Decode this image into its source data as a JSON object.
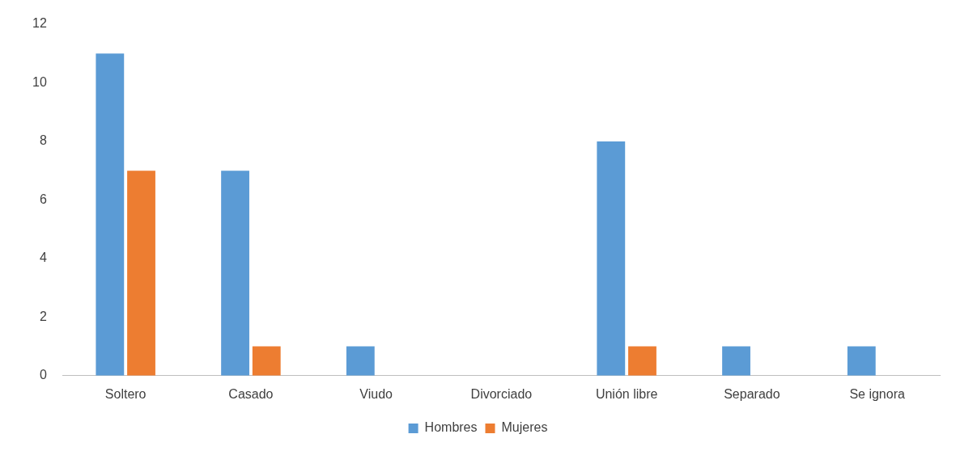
{
  "chart_data": {
    "type": "bar",
    "categories": [
      "Soltero",
      "Casado",
      "Viudo",
      "Divorciado",
      "Unión libre",
      "Separado",
      "Se ignora"
    ],
    "series": [
      {
        "name": "Hombres",
        "color": "#5b9bd5",
        "values": [
          11,
          7,
          1,
          0,
          8,
          1,
          1
        ]
      },
      {
        "name": "Mujeres",
        "color": "#ed7d31",
        "values": [
          7,
          1,
          0,
          0,
          1,
          0,
          0
        ]
      }
    ],
    "ylim": [
      0,
      12
    ],
    "yticks": [
      0,
      2,
      4,
      6,
      8,
      10,
      12
    ],
    "legend": "bottom"
  }
}
